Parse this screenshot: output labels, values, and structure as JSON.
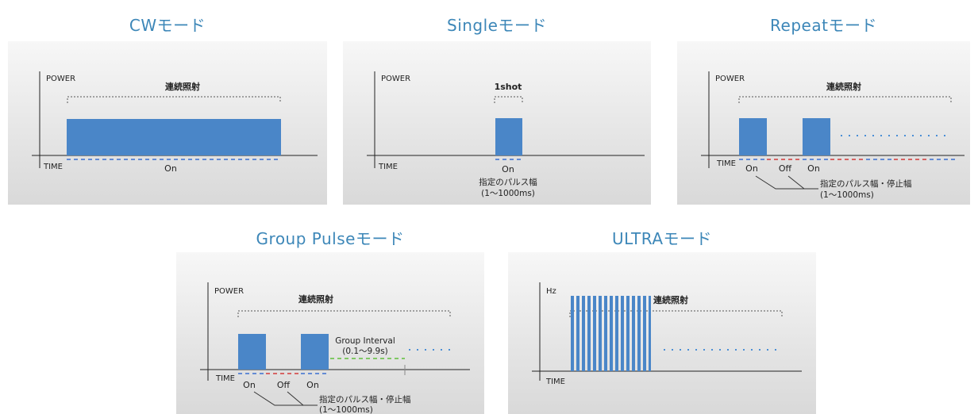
{
  "modes": {
    "cw": {
      "title": "CWモード",
      "y_axis": "POWER",
      "x_axis": "TIME",
      "bracket": "連続照射",
      "on": "On"
    },
    "single": {
      "title": "Singleモード",
      "y_axis": "POWER",
      "x_axis": "TIME",
      "bracket": "1shot",
      "on": "On",
      "note_line1": "指定のパルス幅",
      "note_line2": "(1～1000ms)"
    },
    "repeat": {
      "title": "Repeatモード",
      "y_axis": "POWER",
      "x_axis": "TIME",
      "bracket": "連続照射",
      "on1": "On",
      "off": "Off",
      "on2": "On",
      "note_line1": "指定のパルス幅・停止幅",
      "note_line2": "(1～1000ms)"
    },
    "group": {
      "title": "Group Pulseモード",
      "y_axis": "POWER",
      "x_axis": "TIME",
      "bracket": "連続照射",
      "interval_line1": "Group Interval",
      "interval_line2": "(0.1～9.9s)",
      "on1": "On",
      "off": "Off",
      "on2": "On",
      "note_line1": "指定のパルス幅・停止幅",
      "note_line2": "(1～1000ms)"
    },
    "ultra": {
      "title": "ULTRAモード",
      "y_axis": "Hz",
      "x_axis": "TIME",
      "bracket": "連続照射"
    }
  },
  "colors": {
    "title": "#3d87b8",
    "pulse": "#4a86c8",
    "on_dash": "#3b6fd0",
    "off_dash": "#d23a3a",
    "interval_dash": "#5fbf3a",
    "dots": "#4a8fd6"
  }
}
